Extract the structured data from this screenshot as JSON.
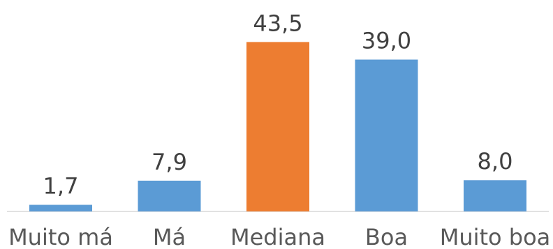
{
  "chart_data": {
    "type": "bar",
    "title": "",
    "xlabel": "",
    "ylabel": "",
    "categories": [
      "Muito má",
      "Má",
      "Mediana",
      "Boa",
      "Muito boa"
    ],
    "values": [
      1.7,
      7.9,
      43.5,
      39.0,
      8.0
    ],
    "value_labels": [
      "1,7",
      "7,9",
      "43,5",
      "39,0",
      "8,0"
    ],
    "colors": [
      "#5B9BD5",
      "#5B9BD5",
      "#ED7D31",
      "#5B9BD5",
      "#5B9BD5"
    ],
    "ylim": [
      0,
      50
    ],
    "grid": false,
    "legend": "none"
  }
}
